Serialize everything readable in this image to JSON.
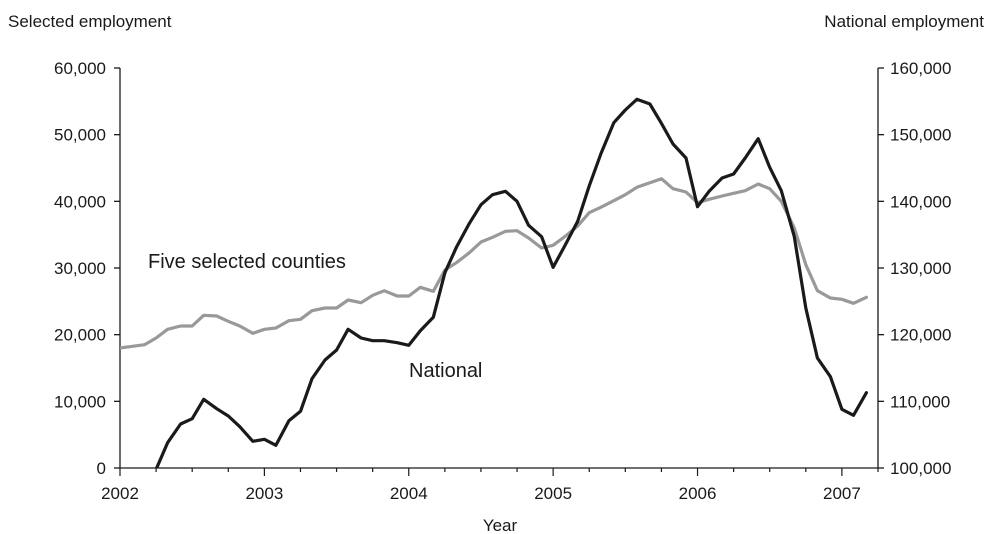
{
  "chart_data": {
    "type": "line",
    "left_axis_title": "Selected employment",
    "right_axis_title": "National employment",
    "xlabel": "Year",
    "x_ticks": [
      "2002",
      "2003",
      "2004",
      "2005",
      "2006",
      "2007"
    ],
    "x_range": [
      2002.0,
      2007.25
    ],
    "y_left": {
      "lim": [
        0,
        60000
      ],
      "ticks": [
        "0",
        "10,000",
        "20,000",
        "30,000",
        "40,000",
        "50,000",
        "60,000"
      ]
    },
    "y_right": {
      "lim": [
        100000,
        160000
      ],
      "ticks": [
        "100,000",
        "110,000",
        "120,000",
        "130,000",
        "140,000",
        "150,000",
        "160,000"
      ]
    },
    "grid": false,
    "series": [
      {
        "name": "Five selected counties",
        "axis": "left",
        "color": "#999999",
        "x": [
          2002.0,
          2002.17,
          2002.25,
          2002.33,
          2002.42,
          2002.5,
          2002.58,
          2002.67,
          2002.75,
          2002.83,
          2002.92,
          2003.0,
          2003.08,
          2003.17,
          2003.25,
          2003.33,
          2003.42,
          2003.5,
          2003.58,
          2003.67,
          2003.75,
          2003.83,
          2003.92,
          2004.0,
          2004.08,
          2004.17,
          2004.25,
          2004.33,
          2004.42,
          2004.5,
          2004.58,
          2004.67,
          2004.75,
          2004.83,
          2004.92,
          2005.0,
          2005.08,
          2005.17,
          2005.25,
          2005.33,
          2005.42,
          2005.5,
          2005.58,
          2005.67,
          2005.75,
          2005.83,
          2005.92,
          2006.0,
          2006.08,
          2006.17,
          2006.25,
          2006.33,
          2006.42,
          2006.5,
          2006.58,
          2006.67,
          2006.75,
          2006.83,
          2006.92,
          2007.0,
          2007.08,
          2007.17
        ],
        "y": [
          18000,
          18500,
          19500,
          20800,
          21300,
          21300,
          22900,
          22800,
          22000,
          21300,
          20200,
          20800,
          21000,
          22100,
          22300,
          23600,
          24000,
          24000,
          25200,
          24800,
          25900,
          26600,
          25800,
          25800,
          27100,
          26500,
          29700,
          30800,
          32300,
          33900,
          34600,
          35500,
          35600,
          34500,
          33000,
          33400,
          34700,
          36300,
          38300,
          39100,
          40100,
          41000,
          42100,
          42800,
          43400,
          41900,
          41400,
          39800,
          40300,
          40800,
          41200,
          41600,
          42600,
          41900,
          40000,
          36000,
          30500,
          26600,
          25500,
          25300,
          24700,
          25600
        ]
      },
      {
        "name": "National",
        "axis": "right",
        "color": "#1a1a1a",
        "x": [
          2002.25,
          2002.33,
          2002.42,
          2002.5,
          2002.58,
          2002.67,
          2002.75,
          2002.83,
          2002.92,
          2003.0,
          2003.08,
          2003.17,
          2003.25,
          2003.33,
          2003.42,
          2003.5,
          2003.58,
          2003.67,
          2003.75,
          2003.83,
          2003.92,
          2004.0,
          2004.08,
          2004.17,
          2004.25,
          2004.33,
          2004.42,
          2004.5,
          2004.58,
          2004.67,
          2004.75,
          2004.83,
          2004.92,
          2005.0,
          2005.08,
          2005.17,
          2005.25,
          2005.33,
          2005.42,
          2005.5,
          2005.58,
          2005.67,
          2005.75,
          2005.83,
          2005.92,
          2006.0,
          2006.08,
          2006.17,
          2006.25,
          2006.33,
          2006.42,
          2006.5,
          2006.58,
          2006.67,
          2006.75,
          2006.83,
          2006.92,
          2007.0,
          2007.08,
          2007.17
        ],
        "y": [
          99800,
          103800,
          106600,
          107400,
          110300,
          108900,
          107800,
          106200,
          104000,
          104300,
          103400,
          107100,
          108500,
          113400,
          116200,
          117700,
          120800,
          119500,
          119100,
          119100,
          118800,
          118400,
          120600,
          122600,
          129300,
          133100,
          136700,
          139500,
          141000,
          141500,
          140000,
          136400,
          134700,
          130100,
          133300,
          137000,
          142300,
          147100,
          151800,
          153700,
          155300,
          154600,
          151700,
          148600,
          146500,
          139200,
          141500,
          143500,
          144100,
          146500,
          149400,
          145100,
          141600,
          134700,
          124000,
          116500,
          113700,
          108800,
          107900,
          111300
        ]
      }
    ],
    "annotations": [
      "Five selected counties",
      "National"
    ]
  }
}
